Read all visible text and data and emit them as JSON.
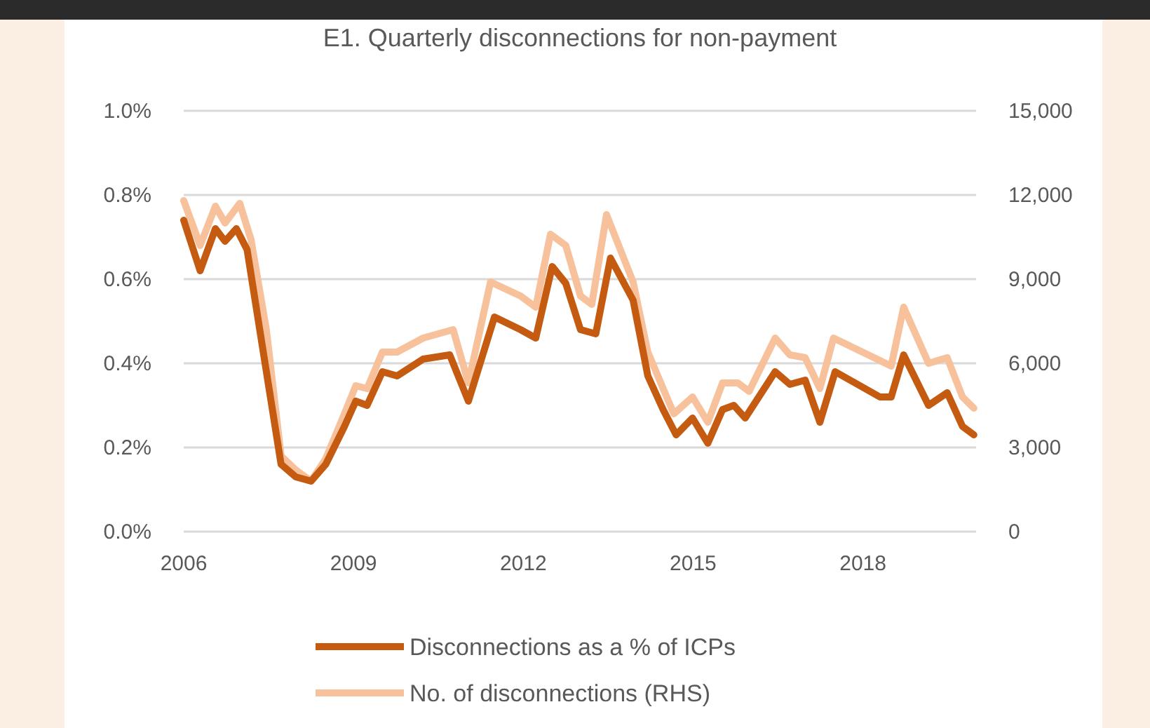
{
  "chart_data": {
    "type": "line",
    "title": "E1. Quarterly disconnections for non-payment",
    "xlim": [
      2006,
      2020
    ],
    "xticks": [
      2006,
      2009,
      2012,
      2015,
      2018
    ],
    "ylim": [
      0,
      1.0
    ],
    "yticks": [
      {
        "value": 0,
        "label": "0.0%"
      },
      {
        "value": 0.2,
        "label": "0.2%"
      },
      {
        "value": 0.4,
        "label": "0.4%"
      },
      {
        "value": 0.6,
        "label": "0.6%"
      },
      {
        "value": 0.8,
        "label": "0.8%"
      },
      {
        "value": 1.0,
        "label": "1.0%"
      }
    ],
    "y2lim": [
      0,
      15000
    ],
    "y2ticks": [
      0,
      {
        "value": 3000,
        "label": "3,000"
      },
      {
        "value": 6000,
        "label": "6,000"
      },
      {
        "value": 9000,
        "label": "9,000"
      },
      {
        "value": 12000,
        "label": "12,000"
      },
      {
        "value": 15000,
        "label": "15,000"
      }
    ],
    "grid": "y",
    "legend": "bottom",
    "series": [
      {
        "name": "No. of disconnections (RHS)",
        "color": "#f7c19b",
        "axis": "y2",
        "x": [
          2006.0,
          2006.29,
          2006.56,
          2006.73,
          2006.99,
          2007.19,
          2007.46,
          2007.72,
          2007.98,
          2008.25,
          2008.51,
          2008.84,
          2009.04,
          2009.24,
          2009.51,
          2009.77,
          2010.23,
          2010.76,
          2011.03,
          2011.42,
          2011.95,
          2012.22,
          2012.48,
          2012.75,
          2013.01,
          2013.21,
          2013.47,
          2013.94,
          2014.2,
          2014.47,
          2014.66,
          2014.99,
          2015.26,
          2015.52,
          2015.79,
          2015.99,
          2016.45,
          2016.71,
          2016.98,
          2017.24,
          2017.48,
          2018.3,
          2018.5,
          2018.72,
          2019.16,
          2019.49,
          2019.76,
          2019.96
        ],
        "values": [
          11800,
          10200,
          11600,
          11000,
          11700,
          10400,
          7200,
          2700,
          2200,
          1800,
          2600,
          4200,
          5200,
          5100,
          6400,
          6400,
          6900,
          7200,
          5300,
          8900,
          8400,
          8000,
          10600,
          10200,
          8400,
          8100,
          11300,
          8900,
          6400,
          5100,
          4200,
          4800,
          3900,
          5300,
          5300,
          5000,
          6900,
          6300,
          6200,
          5100,
          6900,
          6100,
          5900,
          8000,
          6000,
          6200,
          4800,
          4400
        ]
      },
      {
        "name": "Disconnections as a % of ICPs",
        "color": "#c55a11",
        "axis": "y",
        "x": [
          2006.0,
          2006.29,
          2006.56,
          2006.73,
          2006.93,
          2007.12,
          2007.39,
          2007.72,
          2007.98,
          2008.25,
          2008.51,
          2008.84,
          2009.04,
          2009.24,
          2009.51,
          2009.77,
          2010.23,
          2010.7,
          2011.03,
          2011.49,
          2011.95,
          2012.22,
          2012.51,
          2012.75,
          2013.01,
          2013.28,
          2013.54,
          2013.94,
          2014.2,
          2014.47,
          2014.7,
          2014.99,
          2015.26,
          2015.52,
          2015.72,
          2015.92,
          2016.45,
          2016.71,
          2016.98,
          2017.24,
          2017.51,
          2018.3,
          2018.5,
          2018.72,
          2019.16,
          2019.49,
          2019.76,
          2019.96
        ],
        "values": [
          0.74,
          0.62,
          0.72,
          0.69,
          0.72,
          0.67,
          0.44,
          0.16,
          0.13,
          0.12,
          0.16,
          0.25,
          0.31,
          0.3,
          0.38,
          0.37,
          0.41,
          0.42,
          0.31,
          0.51,
          0.48,
          0.46,
          0.63,
          0.59,
          0.48,
          0.47,
          0.65,
          0.55,
          0.37,
          0.29,
          0.23,
          0.27,
          0.21,
          0.29,
          0.3,
          0.27,
          0.38,
          0.35,
          0.36,
          0.26,
          0.38,
          0.32,
          0.32,
          0.42,
          0.3,
          0.33,
          0.25,
          0.23
        ]
      }
    ]
  }
}
